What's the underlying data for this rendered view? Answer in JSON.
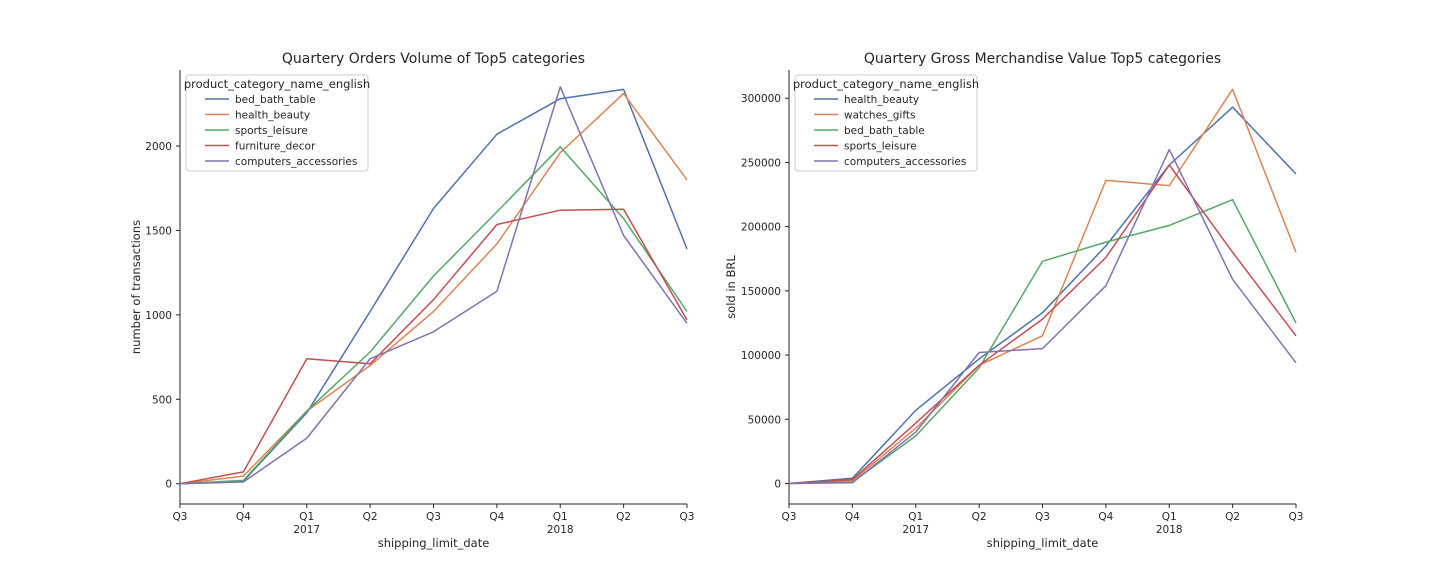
{
  "chart_data": [
    {
      "type": "line",
      "title": "Quartery Orders Volume of Top5 categories",
      "xlabel": "shipping_limit_date",
      "ylabel": "number of transactions",
      "x": [
        "Q3",
        "Q4",
        "Q1",
        "Q2",
        "Q3",
        "Q4",
        "Q1",
        "Q2",
        "Q3"
      ],
      "x_sublabels": [
        "",
        "",
        "2017",
        "",
        "",
        "",
        "2018",
        "",
        ""
      ],
      "ylim": [
        -120,
        2450
      ],
      "yticks": [
        0,
        500,
        1000,
        1500,
        2000
      ],
      "grid": false,
      "legend_title": "product_category_name_english",
      "legend_loc": "top-left",
      "series": [
        {
          "name": "bed_bath_table",
          "color": "#4c72b0",
          "values": [
            0,
            15,
            420,
            1020,
            1630,
            2070,
            2280,
            2335,
            1390
          ]
        },
        {
          "name": "health_beauty",
          "color": "#dd8452",
          "values": [
            0,
            45,
            430,
            700,
            1020,
            1420,
            1960,
            2310,
            1800
          ]
        },
        {
          "name": "sports_leisure",
          "color": "#55a868",
          "values": [
            0,
            20,
            430,
            780,
            1230,
            1610,
            1995,
            1570,
            1020
          ]
        },
        {
          "name": "furniture_decor",
          "color": "#c44e52",
          "values": [
            0,
            70,
            740,
            710,
            1090,
            1535,
            1620,
            1625,
            970
          ]
        },
        {
          "name": "computers_accessories",
          "color": "#8172b3",
          "values": [
            0,
            10,
            270,
            740,
            900,
            1140,
            2350,
            1470,
            950
          ]
        }
      ]
    },
    {
      "type": "line",
      "title": "Quartery Gross Merchandise Value Top5 categories",
      "xlabel": "shipping_limit_date",
      "ylabel": "sold in BRL",
      "x": [
        "Q3",
        "Q4",
        "Q1",
        "Q2",
        "Q3",
        "Q4",
        "Q1",
        "Q2",
        "Q3"
      ],
      "x_sublabels": [
        "",
        "",
        "2017",
        "",
        "",
        "",
        "2018",
        "",
        ""
      ],
      "ylim": [
        -16000,
        322000
      ],
      "yticks": [
        0,
        50000,
        100000,
        150000,
        200000,
        250000,
        300000
      ],
      "grid": false,
      "legend_title": "product_category_name_english",
      "legend_loc": "top-left",
      "series": [
        {
          "name": "health_beauty",
          "color": "#4c72b0",
          "values": [
            0,
            4000,
            57000,
            97000,
            133000,
            185000,
            248000,
            293000,
            241000
          ]
        },
        {
          "name": "watches_gifts",
          "color": "#dd8452",
          "values": [
            0,
            2000,
            43000,
            92000,
            115000,
            236000,
            232000,
            307000,
            180000
          ]
        },
        {
          "name": "bed_bath_table",
          "color": "#55a868",
          "values": [
            0,
            1000,
            37000,
            90000,
            173000,
            188000,
            201000,
            221000,
            125000
          ]
        },
        {
          "name": "sports_leisure",
          "color": "#c44e52",
          "values": [
            0,
            3000,
            47000,
            92000,
            128000,
            176000,
            248000,
            180000,
            115000
          ]
        },
        {
          "name": "computers_accessories",
          "color": "#8172b3",
          "values": [
            0,
            500,
            40000,
            102000,
            105000,
            154000,
            260000,
            159000,
            94000
          ]
        }
      ]
    }
  ]
}
